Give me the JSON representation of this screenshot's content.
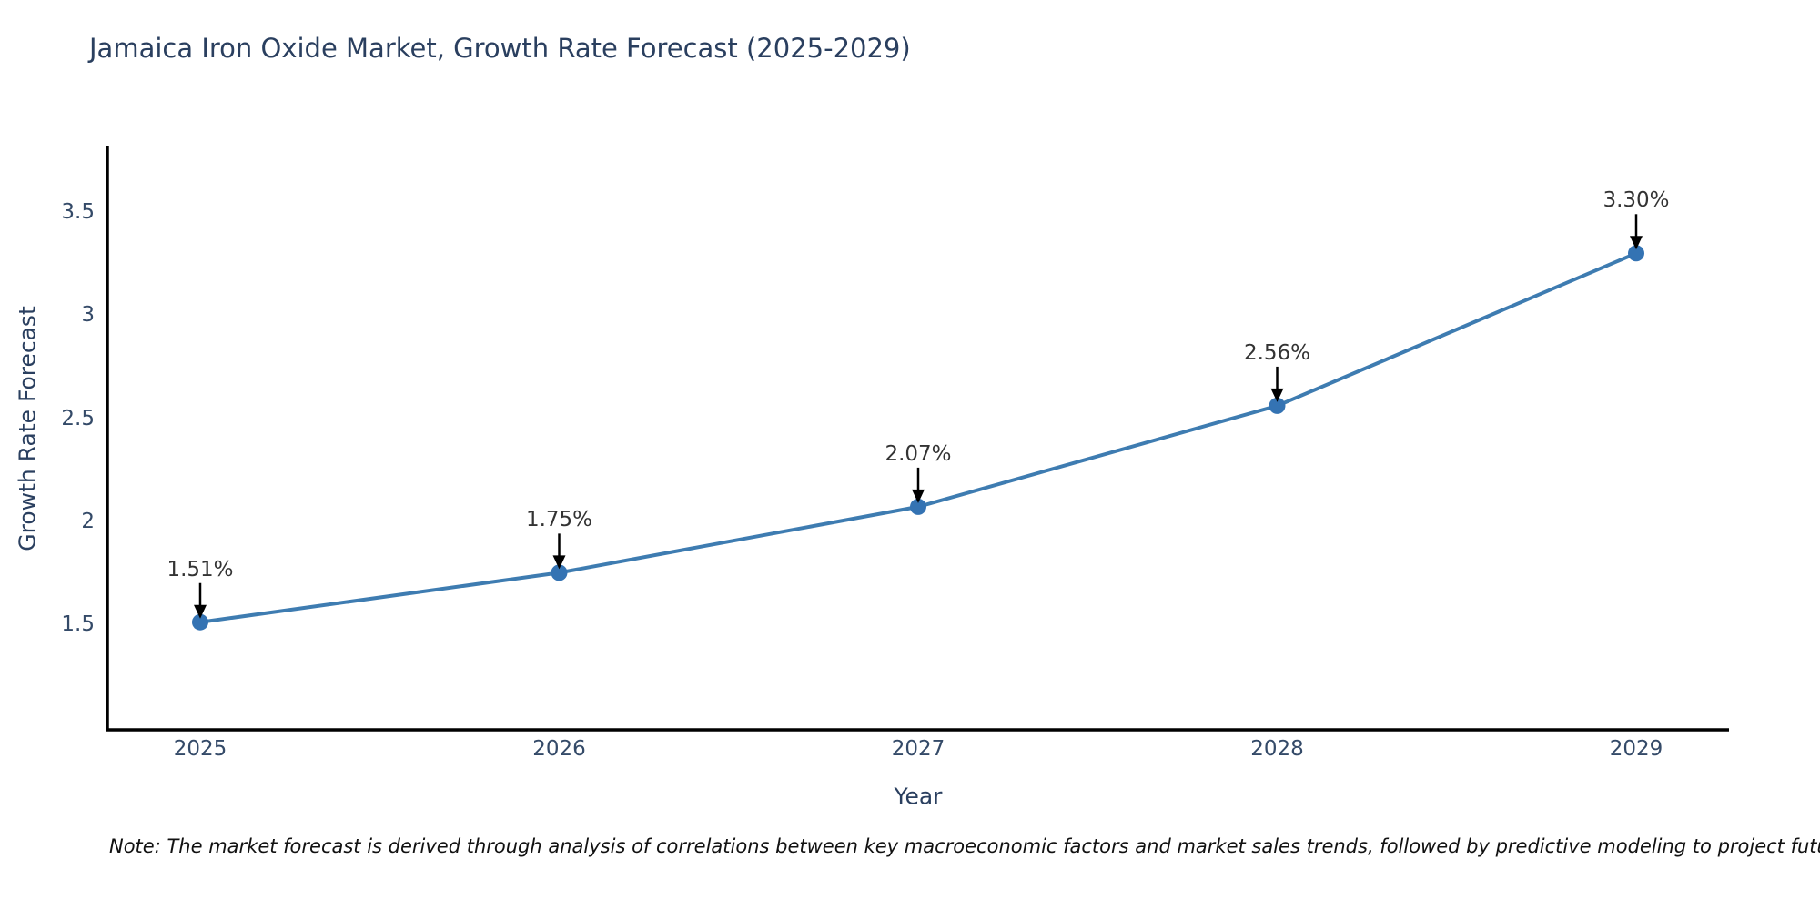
{
  "title": "Jamaica Iron Oxide Market, Growth Rate Forecast (2025-2029)",
  "note": "Note: The market forecast is derived through analysis of correlations between key macroeconomic factors and market sales trends, followed by predictive modeling to project future sales",
  "chart_data": {
    "type": "line",
    "title": "Jamaica Iron Oxide Market, Growth Rate Forecast (2025-2029)",
    "xlabel": "Year",
    "ylabel": "Growth Rate Forecast",
    "x": [
      2025,
      2026,
      2027,
      2028,
      2029
    ],
    "series": [
      {
        "name": "Growth Rate Forecast",
        "values": [
          1.51,
          1.75,
          2.07,
          2.56,
          3.3
        ]
      }
    ],
    "point_labels": [
      "1.51%",
      "1.75%",
      "2.07%",
      "2.56%",
      "3.30%"
    ],
    "xticks": [
      "2025",
      "2026",
      "2027",
      "2028",
      "2029"
    ],
    "yticks": [
      "1.5",
      "2",
      "2.5",
      "3",
      "3.5"
    ],
    "ytick_values": [
      1.5,
      2,
      2.5,
      3,
      3.5
    ],
    "ylim": [
      1.0,
      3.82
    ],
    "grid": false,
    "legend": "none",
    "colors": {
      "line": "#3e7cb1",
      "marker": "#3473b3",
      "axis": "#000000",
      "title_text": "#2a3f5f",
      "tick_text": "#344a68",
      "annotation_text": "#333333",
      "arrow": "#000000"
    }
  }
}
